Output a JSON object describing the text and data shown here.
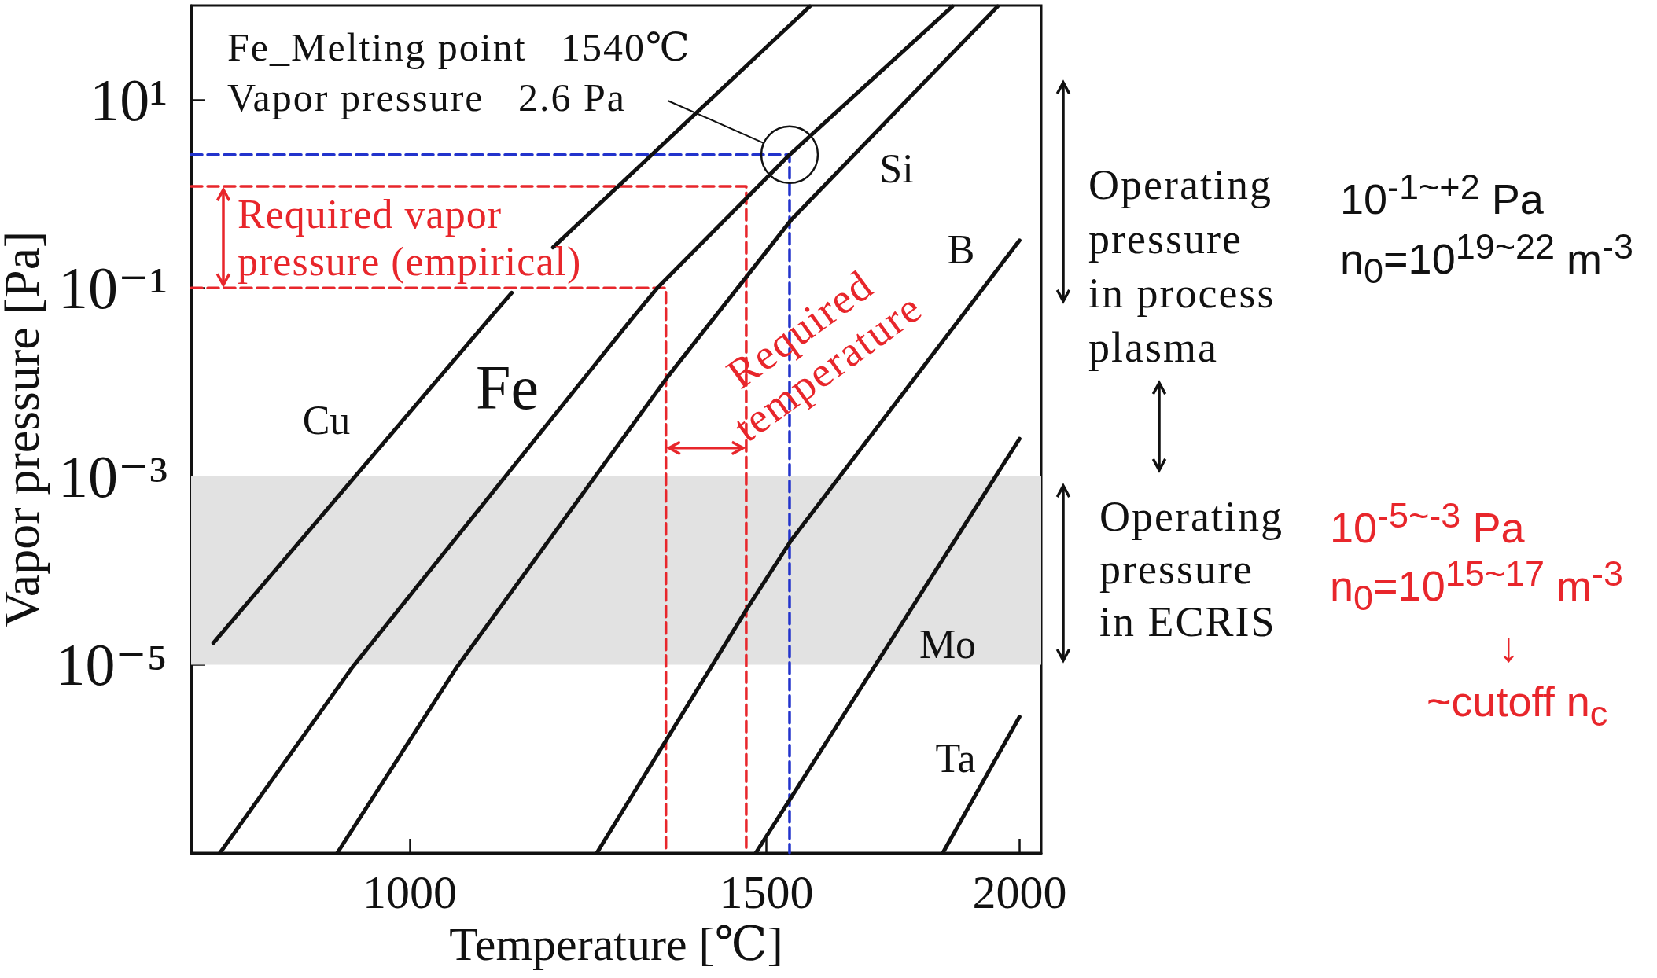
{
  "chart_data": {
    "type": "line",
    "xlabel": "Temperature [℃]",
    "ylabel": "Vapor pressure [Pa]",
    "log": "xy",
    "marker": "none",
    "line_style": "solid",
    "xlim": [
      780,
      2050
    ],
    "ylim": [
      1e-07,
      100
    ],
    "xticks": [
      1000,
      1500,
      2000
    ],
    "yticks": [
      {
        "value": 1e-05,
        "label": "10⁻⁵"
      },
      {
        "value": 0.001,
        "label": "10⁻³"
      },
      {
        "value": 0.1,
        "label": "10⁻¹"
      },
      {
        "value": 10,
        "label": "10¹"
      }
    ],
    "bands": [
      {
        "axis": "y",
        "from": 1e-05,
        "to": 0.001,
        "color": "#e2e2e2"
      }
    ],
    "series": [
      {
        "name": "Cu",
        "color": "#111111",
        "x": [
          800,
          1099,
          1123,
          1150,
          1177,
          1576
        ],
        "values": [
          1.7e-05,
          0.052,
          0.089,
          null,
          0.27,
          98
        ]
      },
      {
        "name": "Fe",
        "color": "#111111",
        "x": [
          806,
          937,
          1285,
          1325,
          1540,
          1853
        ],
        "values": [
          1e-07,
          9.4e-06,
          0.045,
          0.1,
          2.6,
          98
        ]
      },
      {
        "name": "Si",
        "color": "#111111",
        "x": [
          921,
          1055,
          1339,
          1543,
          1951
        ],
        "values": [
          1e-07,
          9.4e-06,
          0.011,
          0.53,
          98
        ]
      },
      {
        "name": "B",
        "color": "#111111",
        "x": [
          1237,
          1467,
          1543,
          2000
        ],
        "values": [
          1e-07,
          3.9e-05,
          0.00021,
          0.32
        ]
      },
      {
        "name": "Mo",
        "color": "#111111",
        "x": [
          1482,
          2000
        ],
        "values": [
          1e-07,
          0.0025
        ]
      },
      {
        "name": "Ta",
        "color": "#111111",
        "x": [
          1833,
          2000
        ],
        "values": [
          1e-07,
          2.8e-06
        ]
      },
      {
        "color": "#2233cc",
        "line_style": "dashed",
        "x": [
          780,
          1540,
          1540
        ],
        "values": [
          2.6,
          2.6,
          1e-07
        ]
      },
      {
        "color": "#e8262b",
        "line_style": "dashed",
        "x": [
          780,
          1466,
          1466
        ],
        "values": [
          1.2,
          1.2,
          1e-07
        ]
      },
      {
        "color": "#e8262b",
        "line_style": "dashed",
        "x": [
          780,
          1338,
          1338
        ],
        "values": [
          0.1,
          0.1,
          1e-07
        ]
      }
    ],
    "annotations": [
      "Fe_Melting point   1540℃\nVapor pressure   2.6 Pa",
      "Required vapor\npressure (empirical)",
      {
        "text": "Required\ntemperature",
        "x": 1338,
        "y": 0.002
      },
      "Operating\npressure\nin process\nplasma",
      "10$^{-1~+2}$ Pa",
      "n$_{0}$=10$^{19~22}$ m$^{-3}$",
      "Operating\npressure\nin ECRIS",
      "10$^{-5~-3}$ Pa",
      "n$_{0}$=10$^{15~17}$ m$^{-3}$",
      "↓",
      "~cutoff n$_{c}$"
    ]
  }
}
